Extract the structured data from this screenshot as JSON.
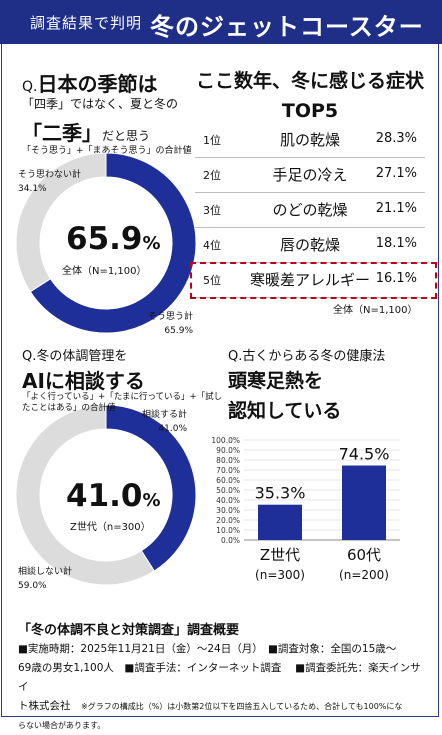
{
  "header": {
    "subtitle": "調査結果で判明",
    "title": "冬のジェットコースター不調"
  },
  "seasons": {
    "q_mark": "Q.",
    "question": "日本の季節は",
    "line1": "「四季」ではなく、夏と冬の",
    "line2_big": "「二季」",
    "line2_small": "だと思う",
    "note": "「そう思う」+「まあそう思う」の合計値",
    "center_value": "65.9",
    "center_unit": "%",
    "base": "全体（N=1,100）",
    "no_label_1": "そう思わない計",
    "no_value": "34.1%",
    "yes_label": "そう思う計",
    "yes_value": "65.9%"
  },
  "ranking": {
    "title_line1": "ここ数年、冬に感じる症状",
    "title_line2": "TOP5",
    "items": [
      {
        "rank": "1位",
        "name": "肌の乾燥",
        "pct": "28.3%"
      },
      {
        "rank": "2位",
        "name": "手足の冷え",
        "pct": "27.1%"
      },
      {
        "rank": "3位",
        "name": "のどの乾燥",
        "pct": "21.1%"
      },
      {
        "rank": "4位",
        "name": "唇の乾燥",
        "pct": "18.1%"
      },
      {
        "rank": "5位",
        "name": "寒暖差アレルギー",
        "pct": "16.1%"
      }
    ],
    "base": "全体（N=1,100）"
  },
  "ai": {
    "question": "Q.冬の体調管理を",
    "headline": "AIに相談する",
    "note_line1": "「よく行っている」+「たまに行っている」+「試し",
    "note_line2": "たことはある」の合計値",
    "center_value": "41.0",
    "center_unit": "%",
    "base": "Z世代（n=300）",
    "yes_label": "相談する計",
    "yes_value": "41.0%",
    "no_label": "相談しない計",
    "no_value": "59.0%"
  },
  "kanzu": {
    "question": "Q.古くからある冬の健康法",
    "headline_line1": "頭寒足熱を",
    "headline_line2": "認知している"
  },
  "summary": {
    "title": "「冬の体調不良と対策調査」調査概要",
    "line1": "■実施時期：2025年11月21日（金）～24日（月）　■調査対象：全国の15歳～",
    "line2": "69歳の男女1,100人　■調査手法：インターネット調査　 ■調査委託先：楽天インサイ",
    "line3a": "ト株式会社",
    "line3b": "※グラフの構成比（%）は小数第2位以下を四捨五入しているため、合計しても100%にな",
    "line4": "らない場合があります。"
  },
  "colors": {
    "navy": "#1f2f9a",
    "grey": "#dcdcdc",
    "highlight": "#c0001a"
  },
  "chart_data": [
    {
      "type": "pie",
      "labels": [
        "そう思う計",
        "そう思わない計"
      ],
      "values": [
        65.9,
        34.1
      ]
    },
    {
      "type": "pie",
      "labels": [
        "相談する計",
        "相談しない計"
      ],
      "values": [
        41.0,
        59.0
      ]
    },
    {
      "type": "bar",
      "categories": [
        "Z世代\n(n=300)",
        "60代\n(n=200)"
      ],
      "values": [
        35.3,
        74.5
      ],
      "ylim": [
        0,
        100
      ],
      "yticks": [
        "0.0%",
        "10.0%",
        "20.0%",
        "30.0%",
        "40.0%",
        "50.0%",
        "60.0%",
        "70.0%",
        "80.0%",
        "90.0%",
        "100.0%"
      ],
      "value_labels": [
        "35.3%",
        "74.5%"
      ],
      "category_names": [
        "Z世代",
        "60代"
      ],
      "category_bases": [
        "(n=300)",
        "(n=200)"
      ]
    }
  ]
}
